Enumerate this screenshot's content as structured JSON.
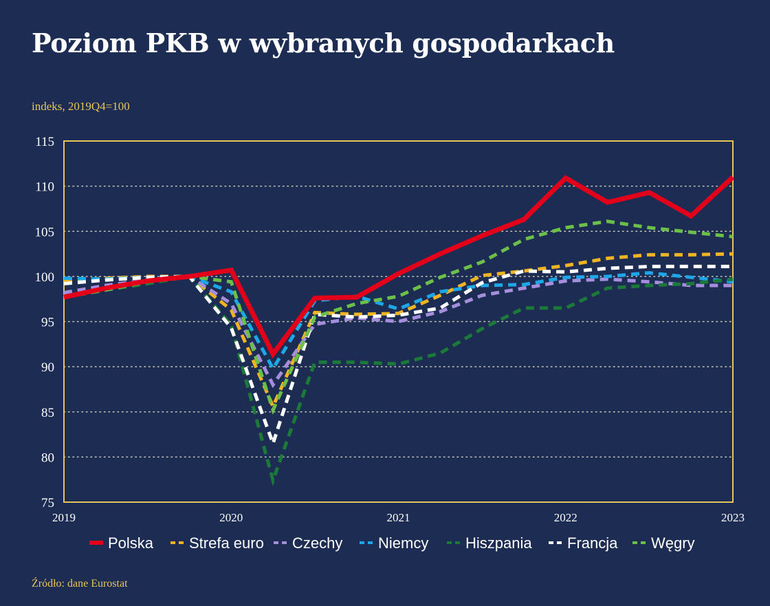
{
  "title": "Poziom PKB w wybranych gospodarkach",
  "subtitle": "indeks, 2019Q4=100",
  "source": "Źródło: dane Eurostat",
  "colors": {
    "background": "#1c2c52",
    "frame": "#e8c55a",
    "grid": "#c9c9b8"
  },
  "chart_data": {
    "type": "line",
    "title": "Poziom PKB w wybranych gospodarkach",
    "ylabel": "indeks, 2019Q4=100",
    "xlabel": "",
    "ylim": [
      75,
      115
    ],
    "yticks": [
      75,
      80,
      85,
      90,
      95,
      100,
      105,
      110,
      115
    ],
    "xlim": [
      0,
      16
    ],
    "x_tick_labels": [
      {
        "x": 0,
        "label": "2019"
      },
      {
        "x": 4,
        "label": "2020"
      },
      {
        "x": 8,
        "label": "2021"
      },
      {
        "x": 12,
        "label": "2022"
      },
      {
        "x": 16,
        "label": "2023"
      }
    ],
    "periods": [
      "2019Q1",
      "2019Q2",
      "2019Q3",
      "2019Q4",
      "2020Q1",
      "2020Q2",
      "2020Q3",
      "2020Q4",
      "2021Q1",
      "2021Q2",
      "2021Q3",
      "2021Q4",
      "2022Q1",
      "2022Q2",
      "2022Q3",
      "2022Q4",
      "2023Q1"
    ],
    "grid": true,
    "legend_position": "bottom",
    "series": [
      {
        "name": "Strefa euro",
        "color": "#f0b323",
        "dashed": true,
        "values": [
          99.5,
          99.8,
          100.0,
          100.0,
          96.3,
          85.6,
          96.0,
          95.8,
          95.9,
          97.9,
          100.1,
          100.6,
          101.2,
          102.0,
          102.4,
          102.4,
          102.5
        ]
      },
      {
        "name": "Czechy",
        "color": "#a58fdc",
        "dashed": true,
        "values": [
          98.2,
          99.0,
          99.6,
          100.0,
          97.0,
          88.0,
          94.7,
          95.4,
          95.0,
          96.1,
          97.9,
          98.7,
          99.5,
          99.7,
          99.4,
          99.0,
          99.0
        ]
      },
      {
        "name": "Niemcy",
        "color": "#1ea7e8",
        "dashed": true,
        "values": [
          99.8,
          99.7,
          99.9,
          100.0,
          98.3,
          89.8,
          97.3,
          97.8,
          96.4,
          98.3,
          99.0,
          99.1,
          99.9,
          100.0,
          100.4,
          99.9,
          99.4
        ]
      },
      {
        "name": "Hiszpania",
        "color": "#1b7a3a",
        "dashed": true,
        "values": [
          97.8,
          98.5,
          99.2,
          100.0,
          94.6,
          77.4,
          90.5,
          90.5,
          90.3,
          91.5,
          94.2,
          96.5,
          96.5,
          98.7,
          99.0,
          99.2,
          99.7
        ]
      },
      {
        "name": "Francja",
        "color": "#ffffff",
        "dashed": true,
        "values": [
          99.2,
          99.6,
          99.9,
          100.0,
          94.3,
          81.5,
          95.8,
          95.5,
          95.7,
          96.5,
          99.3,
          100.6,
          100.5,
          100.9,
          101.1,
          101.1,
          101.1
        ]
      },
      {
        "name": "Węgry",
        "color": "#6cc04a",
        "dashed": true,
        "values": [
          97.7,
          98.5,
          99.4,
          100.0,
          99.4,
          85.2,
          95.5,
          97.0,
          97.8,
          99.9,
          101.6,
          104.1,
          105.4,
          106.1,
          105.4,
          104.9,
          104.4
        ]
      },
      {
        "name": "Polska",
        "color": "#e2001a",
        "dashed": false,
        "values": [
          97.7,
          98.7,
          99.5,
          100.0,
          100.7,
          91.4,
          97.6,
          97.7,
          100.3,
          102.5,
          104.5,
          106.3,
          110.9,
          108.2,
          109.3,
          106.7,
          111.0
        ]
      }
    ],
    "legend_order": [
      "Polska",
      "Strefa euro",
      "Czechy",
      "Niemcy",
      "Hiszpania",
      "Francja",
      "Węgry"
    ]
  }
}
